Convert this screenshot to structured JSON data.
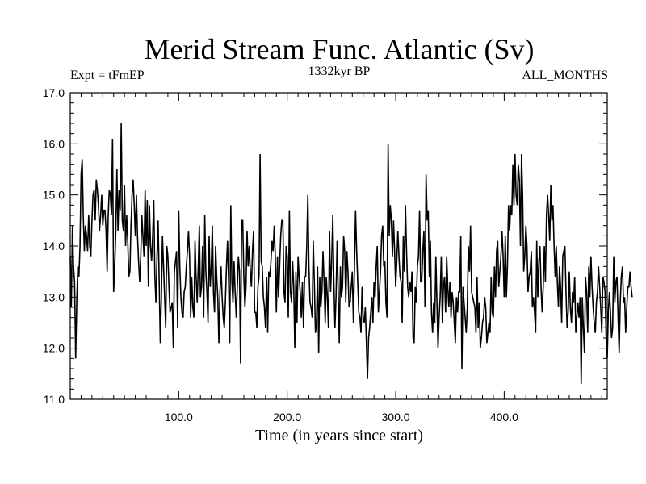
{
  "chart_data": {
    "type": "line",
    "title": "Merid Stream Func. Atlantic (Sv)",
    "subtitle": "1332kyr BP",
    "label_left": "Expt = tFmEP",
    "label_right": "ALL_MONTHS",
    "xlabel": "Time (in years since start)",
    "ylabel": "",
    "xlim": [
      0,
      495
    ],
    "ylim": [
      11.0,
      17.0
    ],
    "x_ticks": [
      100,
      200,
      300,
      400
    ],
    "x_tick_labels": [
      "100.0",
      "200.0",
      "300.0",
      "400.0"
    ],
    "y_ticks": [
      11,
      12,
      13,
      14,
      15,
      16,
      17
    ],
    "y_tick_labels": [
      "11.0",
      "12.0",
      "13.0",
      "14.0",
      "15.0",
      "16.0",
      "17.0"
    ],
    "x_minor_step": 10,
    "y_minor_step": 0.2,
    "grid": false,
    "series": [
      {
        "name": "Merid Stream Func. Atlantic",
        "x_start": 0,
        "x_step": 1,
        "values": [
          13.8,
          12.8,
          14.4,
          13.6,
          13.3,
          11.8,
          12.9,
          13.6,
          13.4,
          14.0,
          15.4,
          15.7,
          14.6,
          13.9,
          14.4,
          14.2,
          13.9,
          14.6,
          14.0,
          13.8,
          14.5,
          15.0,
          15.1,
          14.5,
          15.3,
          15.1,
          14.8,
          14.3,
          14.6,
          15.0,
          14.4,
          14.7,
          14.7,
          14.3,
          13.5,
          14.6,
          15.1,
          15.0,
          14.6,
          16.1,
          13.1,
          13.6,
          14.3,
          15.5,
          14.3,
          15.1,
          14.7,
          16.4,
          14.5,
          14.3,
          15.2,
          14.0,
          14.6,
          14.1,
          13.4,
          13.5,
          14.4,
          15.0,
          15.3,
          14.8,
          14.2,
          15.0,
          14.2,
          13.7,
          13.3,
          13.8,
          14.6,
          14.2,
          13.8,
          15.1,
          14.0,
          14.9,
          13.2,
          14.8,
          14.0,
          13.7,
          14.2,
          14.9,
          13.4,
          12.9,
          13.8,
          14.5,
          13.3,
          12.1,
          13.0,
          14.2,
          13.6,
          13.0,
          12.4,
          14.0,
          13.8,
          13.2,
          12.7,
          12.8,
          12.9,
          12.0,
          13.5,
          13.7,
          13.9,
          12.4,
          14.7,
          13.6,
          13.0,
          12.7,
          12.6,
          13.1,
          13.2,
          13.6,
          13.9,
          14.3,
          13.8,
          12.6,
          13.4,
          12.8,
          12.6,
          14.1,
          13.4,
          12.9,
          13.6,
          14.4,
          13.0,
          13.2,
          14.0,
          12.6,
          14.6,
          13.5,
          13.1,
          12.5,
          14.2,
          13.2,
          13.6,
          14.4,
          13.1,
          12.7,
          14.0,
          13.4,
          13.0,
          12.1,
          13.1,
          13.6,
          13.0,
          12.6,
          12.4,
          12.9,
          13.6,
          14.1,
          13.3,
          12.1,
          14.8,
          13.3,
          12.9,
          13.7,
          13.1,
          12.6,
          13.2,
          13.8,
          13.5,
          11.7,
          14.5,
          14.5,
          13.4,
          12.8,
          13.2,
          14.3,
          13.6,
          14.0,
          13.5,
          13.2,
          13.9,
          14.3,
          12.7,
          12.7,
          12.4,
          13.2,
          13.4,
          15.8,
          13.7,
          13.6,
          13.0,
          12.8,
          12.4,
          13.4,
          12.3,
          13.5,
          13.4,
          13.7,
          14.1,
          13.9,
          14.4,
          13.8,
          12.7,
          13.8,
          13.0,
          13.6,
          14.2,
          14.5,
          14.5,
          13.1,
          12.9,
          14.0,
          13.8,
          12.6,
          14.7,
          13.1,
          12.9,
          13.7,
          13.2,
          12.0,
          13.5,
          12.5,
          13.8,
          13.4,
          13.1,
          12.6,
          13.3,
          12.4,
          13.4,
          13.4,
          14.0,
          15.0,
          13.6,
          12.9,
          12.8,
          12.6,
          14.1,
          13.3,
          12.3,
          12.5,
          13.6,
          11.9,
          13.4,
          12.8,
          13.1,
          13.9,
          13.3,
          12.5,
          13.4,
          13.0,
          12.4,
          14.3,
          13.1,
          13.7,
          14.6,
          13.3,
          12.4,
          13.0,
          14.1,
          13.1,
          12.1,
          13.6,
          13.0,
          13.2,
          14.2,
          13.9,
          12.9,
          13.9,
          13.5,
          12.8,
          12.9,
          13.2,
          13.5,
          12.5,
          13.6,
          14.7,
          13.9,
          13.3,
          12.7,
          12.6,
          12.3,
          13.2,
          12.6,
          12.5,
          12.8,
          12.1,
          11.4,
          12.2,
          12.4,
          12.7,
          13.0,
          12.5,
          13.3,
          13.0,
          13.6,
          14.0,
          12.7,
          13.1,
          13.5,
          14.2,
          14.4,
          13.6,
          13.7,
          12.9,
          12.6,
          16.0,
          14.2,
          14.8,
          14.5,
          13.8,
          14.5,
          13.9,
          13.2,
          13.7,
          14.3,
          13.8,
          13.4,
          13.3,
          12.5,
          14.2,
          13.5,
          14.8,
          13.9,
          13.2,
          13.0,
          13.3,
          13.1,
          13.5,
          12.2,
          12.1,
          13.2,
          12.9,
          13.6,
          13.8,
          14.7,
          13.3,
          13.3,
          13.9,
          14.3,
          12.8,
          15.4,
          14.5,
          14.7,
          13.4,
          14.1,
          12.7,
          12.3,
          12.9,
          12.5,
          13.8,
          12.9,
          12.0,
          12.6,
          13.0,
          13.8,
          12.5,
          13.2,
          13.4,
          12.7,
          13.8,
          13.2,
          12.8,
          13.3,
          12.6,
          13.1,
          12.9,
          12.5,
          12.1,
          13.0,
          12.7,
          13.1,
          13.1,
          14.2,
          11.6,
          13.2,
          12.9,
          12.6,
          12.3,
          12.8,
          14.0,
          13.5,
          14.4,
          13.1,
          13.0,
          12.9,
          12.8,
          12.3,
          13.4,
          12.4,
          12.9,
          12.0,
          12.2,
          12.5,
          12.6,
          13.0,
          12.8,
          12.1,
          12.3,
          12.5,
          12.3,
          13.4,
          12.7,
          12.6,
          13.6,
          13.0,
          13.9,
          14.1,
          13.2,
          13.5,
          13.8,
          14.3,
          13.8,
          13.0,
          14.2,
          13.0,
          13.6,
          14.8,
          14.3,
          14.8,
          14.6,
          15.6,
          14.8,
          15.8,
          15.0,
          14.8,
          15.6,
          15.3,
          14.0,
          15.8,
          15.0,
          13.5,
          13.8,
          14.4,
          14.0,
          13.1,
          13.4,
          13.5,
          13.9,
          12.8,
          13.0,
          12.7,
          12.3,
          14.1,
          13.0,
          13.7,
          14.0,
          13.2,
          12.7,
          13.2,
          14.0,
          13.3,
          14.6,
          15.0,
          14.6,
          14.1,
          15.2,
          14.5,
          14.8,
          14.0,
          13.4,
          14.0,
          13.3,
          12.8,
          13.6,
          13.2,
          12.5,
          13.8,
          13.9,
          14.0,
          13.1,
          12.4,
          12.7,
          13.5,
          12.8,
          12.5,
          13.1,
          12.9,
          13.4,
          12.3,
          12.6,
          12.9,
          12.6,
          13.0,
          11.3,
          13.0,
          12.4,
          11.9,
          13.4,
          13.1,
          12.3,
          13.6,
          13.0,
          13.8,
          13.2,
          12.8,
          12.5,
          12.3,
          12.9,
          13.1,
          13.6,
          13.2,
          12.8,
          12.3,
          13.4,
          13.3,
          13.1,
          12.2,
          11.8,
          12.7,
          13.1,
          12.7,
          12.2,
          12.4,
          13.8,
          12.9,
          13.3,
          13.4,
          12.6,
          11.9,
          12.9,
          13.4,
          13.6,
          12.9,
          13.0,
          12.3,
          12.8,
          13.2,
          13.2,
          13.5,
          13.2,
          13.0
        ]
      }
    ]
  }
}
